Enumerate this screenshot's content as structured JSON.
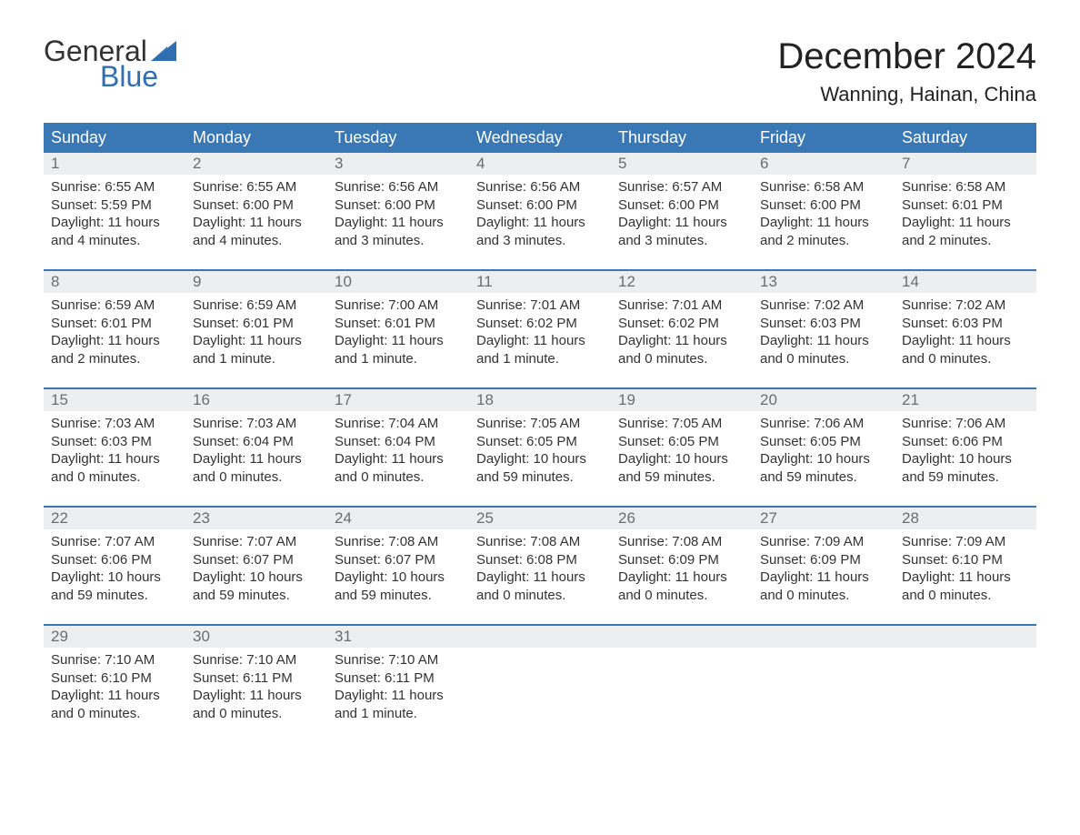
{
  "brand": {
    "word1": "General",
    "word2": "Blue",
    "accent_color": "#2f6fb2"
  },
  "title": "December 2024",
  "location": "Wanning, Hainan, China",
  "colors": {
    "header_bg": "#3a77b5",
    "header_text": "#ffffff",
    "daynum_bg": "#eceeef",
    "daynum_text": "#6d6d6d",
    "body_text": "#333333",
    "page_bg": "#ffffff"
  },
  "day_headers": [
    "Sunday",
    "Monday",
    "Tuesday",
    "Wednesday",
    "Thursday",
    "Friday",
    "Saturday"
  ],
  "weeks": [
    [
      {
        "n": "1",
        "sunrise": "Sunrise: 6:55 AM",
        "sunset": "Sunset: 5:59 PM",
        "day1": "Daylight: 11 hours",
        "day2": "and 4 minutes."
      },
      {
        "n": "2",
        "sunrise": "Sunrise: 6:55 AM",
        "sunset": "Sunset: 6:00 PM",
        "day1": "Daylight: 11 hours",
        "day2": "and 4 minutes."
      },
      {
        "n": "3",
        "sunrise": "Sunrise: 6:56 AM",
        "sunset": "Sunset: 6:00 PM",
        "day1": "Daylight: 11 hours",
        "day2": "and 3 minutes."
      },
      {
        "n": "4",
        "sunrise": "Sunrise: 6:56 AM",
        "sunset": "Sunset: 6:00 PM",
        "day1": "Daylight: 11 hours",
        "day2": "and 3 minutes."
      },
      {
        "n": "5",
        "sunrise": "Sunrise: 6:57 AM",
        "sunset": "Sunset: 6:00 PM",
        "day1": "Daylight: 11 hours",
        "day2": "and 3 minutes."
      },
      {
        "n": "6",
        "sunrise": "Sunrise: 6:58 AM",
        "sunset": "Sunset: 6:00 PM",
        "day1": "Daylight: 11 hours",
        "day2": "and 2 minutes."
      },
      {
        "n": "7",
        "sunrise": "Sunrise: 6:58 AM",
        "sunset": "Sunset: 6:01 PM",
        "day1": "Daylight: 11 hours",
        "day2": "and 2 minutes."
      }
    ],
    [
      {
        "n": "8",
        "sunrise": "Sunrise: 6:59 AM",
        "sunset": "Sunset: 6:01 PM",
        "day1": "Daylight: 11 hours",
        "day2": "and 2 minutes."
      },
      {
        "n": "9",
        "sunrise": "Sunrise: 6:59 AM",
        "sunset": "Sunset: 6:01 PM",
        "day1": "Daylight: 11 hours",
        "day2": "and 1 minute."
      },
      {
        "n": "10",
        "sunrise": "Sunrise: 7:00 AM",
        "sunset": "Sunset: 6:01 PM",
        "day1": "Daylight: 11 hours",
        "day2": "and 1 minute."
      },
      {
        "n": "11",
        "sunrise": "Sunrise: 7:01 AM",
        "sunset": "Sunset: 6:02 PM",
        "day1": "Daylight: 11 hours",
        "day2": "and 1 minute."
      },
      {
        "n": "12",
        "sunrise": "Sunrise: 7:01 AM",
        "sunset": "Sunset: 6:02 PM",
        "day1": "Daylight: 11 hours",
        "day2": "and 0 minutes."
      },
      {
        "n": "13",
        "sunrise": "Sunrise: 7:02 AM",
        "sunset": "Sunset: 6:03 PM",
        "day1": "Daylight: 11 hours",
        "day2": "and 0 minutes."
      },
      {
        "n": "14",
        "sunrise": "Sunrise: 7:02 AM",
        "sunset": "Sunset: 6:03 PM",
        "day1": "Daylight: 11 hours",
        "day2": "and 0 minutes."
      }
    ],
    [
      {
        "n": "15",
        "sunrise": "Sunrise: 7:03 AM",
        "sunset": "Sunset: 6:03 PM",
        "day1": "Daylight: 11 hours",
        "day2": "and 0 minutes."
      },
      {
        "n": "16",
        "sunrise": "Sunrise: 7:03 AM",
        "sunset": "Sunset: 6:04 PM",
        "day1": "Daylight: 11 hours",
        "day2": "and 0 minutes."
      },
      {
        "n": "17",
        "sunrise": "Sunrise: 7:04 AM",
        "sunset": "Sunset: 6:04 PM",
        "day1": "Daylight: 11 hours",
        "day2": "and 0 minutes."
      },
      {
        "n": "18",
        "sunrise": "Sunrise: 7:05 AM",
        "sunset": "Sunset: 6:05 PM",
        "day1": "Daylight: 10 hours",
        "day2": "and 59 minutes."
      },
      {
        "n": "19",
        "sunrise": "Sunrise: 7:05 AM",
        "sunset": "Sunset: 6:05 PM",
        "day1": "Daylight: 10 hours",
        "day2": "and 59 minutes."
      },
      {
        "n": "20",
        "sunrise": "Sunrise: 7:06 AM",
        "sunset": "Sunset: 6:05 PM",
        "day1": "Daylight: 10 hours",
        "day2": "and 59 minutes."
      },
      {
        "n": "21",
        "sunrise": "Sunrise: 7:06 AM",
        "sunset": "Sunset: 6:06 PM",
        "day1": "Daylight: 10 hours",
        "day2": "and 59 minutes."
      }
    ],
    [
      {
        "n": "22",
        "sunrise": "Sunrise: 7:07 AM",
        "sunset": "Sunset: 6:06 PM",
        "day1": "Daylight: 10 hours",
        "day2": "and 59 minutes."
      },
      {
        "n": "23",
        "sunrise": "Sunrise: 7:07 AM",
        "sunset": "Sunset: 6:07 PM",
        "day1": "Daylight: 10 hours",
        "day2": "and 59 minutes."
      },
      {
        "n": "24",
        "sunrise": "Sunrise: 7:08 AM",
        "sunset": "Sunset: 6:07 PM",
        "day1": "Daylight: 10 hours",
        "day2": "and 59 minutes."
      },
      {
        "n": "25",
        "sunrise": "Sunrise: 7:08 AM",
        "sunset": "Sunset: 6:08 PM",
        "day1": "Daylight: 11 hours",
        "day2": "and 0 minutes."
      },
      {
        "n": "26",
        "sunrise": "Sunrise: 7:08 AM",
        "sunset": "Sunset: 6:09 PM",
        "day1": "Daylight: 11 hours",
        "day2": "and 0 minutes."
      },
      {
        "n": "27",
        "sunrise": "Sunrise: 7:09 AM",
        "sunset": "Sunset: 6:09 PM",
        "day1": "Daylight: 11 hours",
        "day2": "and 0 minutes."
      },
      {
        "n": "28",
        "sunrise": "Sunrise: 7:09 AM",
        "sunset": "Sunset: 6:10 PM",
        "day1": "Daylight: 11 hours",
        "day2": "and 0 minutes."
      }
    ],
    [
      {
        "n": "29",
        "sunrise": "Sunrise: 7:10 AM",
        "sunset": "Sunset: 6:10 PM",
        "day1": "Daylight: 11 hours",
        "day2": "and 0 minutes."
      },
      {
        "n": "30",
        "sunrise": "Sunrise: 7:10 AM",
        "sunset": "Sunset: 6:11 PM",
        "day1": "Daylight: 11 hours",
        "day2": "and 0 minutes."
      },
      {
        "n": "31",
        "sunrise": "Sunrise: 7:10 AM",
        "sunset": "Sunset: 6:11 PM",
        "day1": "Daylight: 11 hours",
        "day2": "and 1 minute."
      },
      null,
      null,
      null,
      null
    ]
  ]
}
